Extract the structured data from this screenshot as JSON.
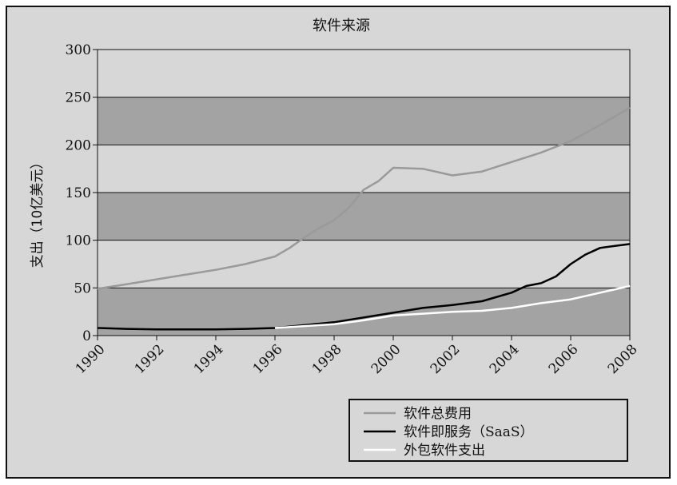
{
  "chart_data": {
    "type": "line",
    "title": "软件来源",
    "ylabel": "支出（10亿美元）",
    "xlabel": "",
    "ylim": [
      0,
      300
    ],
    "xlim": [
      1990,
      2008
    ],
    "yticks": [
      0,
      50,
      100,
      150,
      200,
      250,
      300
    ],
    "xticks": [
      1990,
      1992,
      1994,
      1996,
      1998,
      2000,
      2002,
      2004,
      2006,
      2008
    ],
    "legend_position": "bottom-right",
    "band_colors": [
      "#a3a3a3",
      "#d7d7d7"
    ],
    "series": [
      {
        "name": "软件总费用",
        "color": "#9a9a9a",
        "x": [
          1990,
          1991,
          1992,
          1993,
          1994,
          1995,
          1996,
          1996.5,
          1997,
          1997.5,
          1998,
          1998.5,
          1999,
          1999.5,
          2000,
          2001,
          2002,
          2003,
          2004,
          2005,
          2006,
          2007,
          2008
        ],
        "y": [
          49,
          54,
          59,
          64,
          69,
          75,
          83,
          92,
          103,
          113,
          121,
          134,
          153,
          162,
          176,
          175,
          168,
          172,
          182,
          192,
          204,
          221,
          239
        ]
      },
      {
        "name": "软件即服务（SaaS）",
        "color": "#000000",
        "x": [
          1990,
          1991,
          1992,
          1993,
          1994,
          1995,
          1996,
          1997,
          1998,
          1999,
          2000,
          2001,
          2002,
          2003,
          2004,
          2004.5,
          2005,
          2005.5,
          2006,
          2006.5,
          2007,
          2007.5,
          2008
        ],
        "y": [
          8,
          7,
          6.5,
          6.5,
          6.5,
          7,
          8,
          11,
          14,
          19,
          24,
          29,
          32,
          36,
          45,
          52,
          55,
          62,
          75,
          85,
          92,
          94,
          96
        ]
      },
      {
        "name": "外包软件支出",
        "color": "#ffffff",
        "x": [
          1996,
          1997,
          1998,
          1999,
          2000,
          2001,
          2002,
          2003,
          2004,
          2005,
          2006,
          2007,
          2008
        ],
        "y": [
          8,
          10,
          12,
          16,
          21,
          23,
          25,
          26,
          29,
          34,
          38,
          45,
          52
        ]
      }
    ]
  }
}
